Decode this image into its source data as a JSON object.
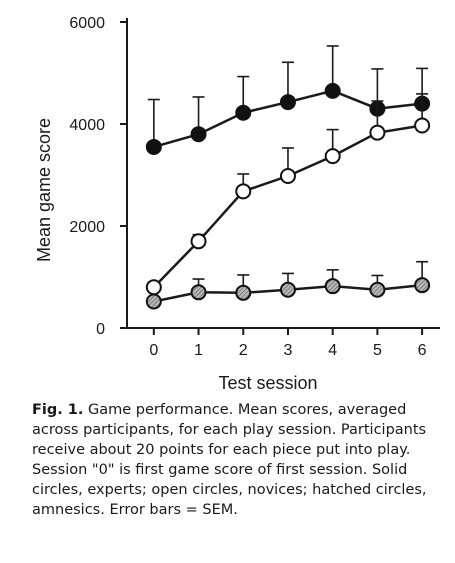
{
  "caption": {
    "label": "Fig. 1.",
    "text": "Game performance. Mean scores, averaged across participants, for each play session. Participants receive about 20 points for each piece put into play. Session \"0\" is first game score of first session. Solid circles, experts; open circles, novices; hatched circles, amnesics. Error bars = SEM."
  },
  "chart_data": {
    "type": "line",
    "title": "",
    "xlabel": "Test session",
    "ylabel": "Mean game score",
    "x": [
      0,
      1,
      2,
      3,
      4,
      5,
      6
    ],
    "xticks": [
      "0",
      "1",
      "2",
      "3",
      "4",
      "5",
      "6"
    ],
    "yticks": [
      "0",
      "2000",
      "4000",
      "6000"
    ],
    "xlim": [
      -0.6,
      6.4
    ],
    "ylim": [
      0,
      6000
    ],
    "grid": false,
    "series": [
      {
        "key": "experts",
        "marker": "solid",
        "color": "#111111",
        "values": [
          3550,
          3800,
          4220,
          4430,
          4650,
          4300,
          4400
        ],
        "err": [
          930,
          730,
          710,
          780,
          880,
          780,
          690
        ]
      },
      {
        "key": "novices",
        "marker": "open",
        "color": "#ffffff",
        "values": [
          800,
          1700,
          2680,
          2980,
          3370,
          3830,
          3970
        ],
        "err": [
          0,
          130,
          340,
          550,
          520,
          620,
          620
        ]
      },
      {
        "key": "amnesics",
        "marker": "hatched",
        "color": "#9a9a9a",
        "values": [
          520,
          700,
          690,
          750,
          820,
          750,
          840
        ],
        "err": [
          0,
          260,
          350,
          320,
          320,
          280,
          460
        ]
      }
    ]
  }
}
